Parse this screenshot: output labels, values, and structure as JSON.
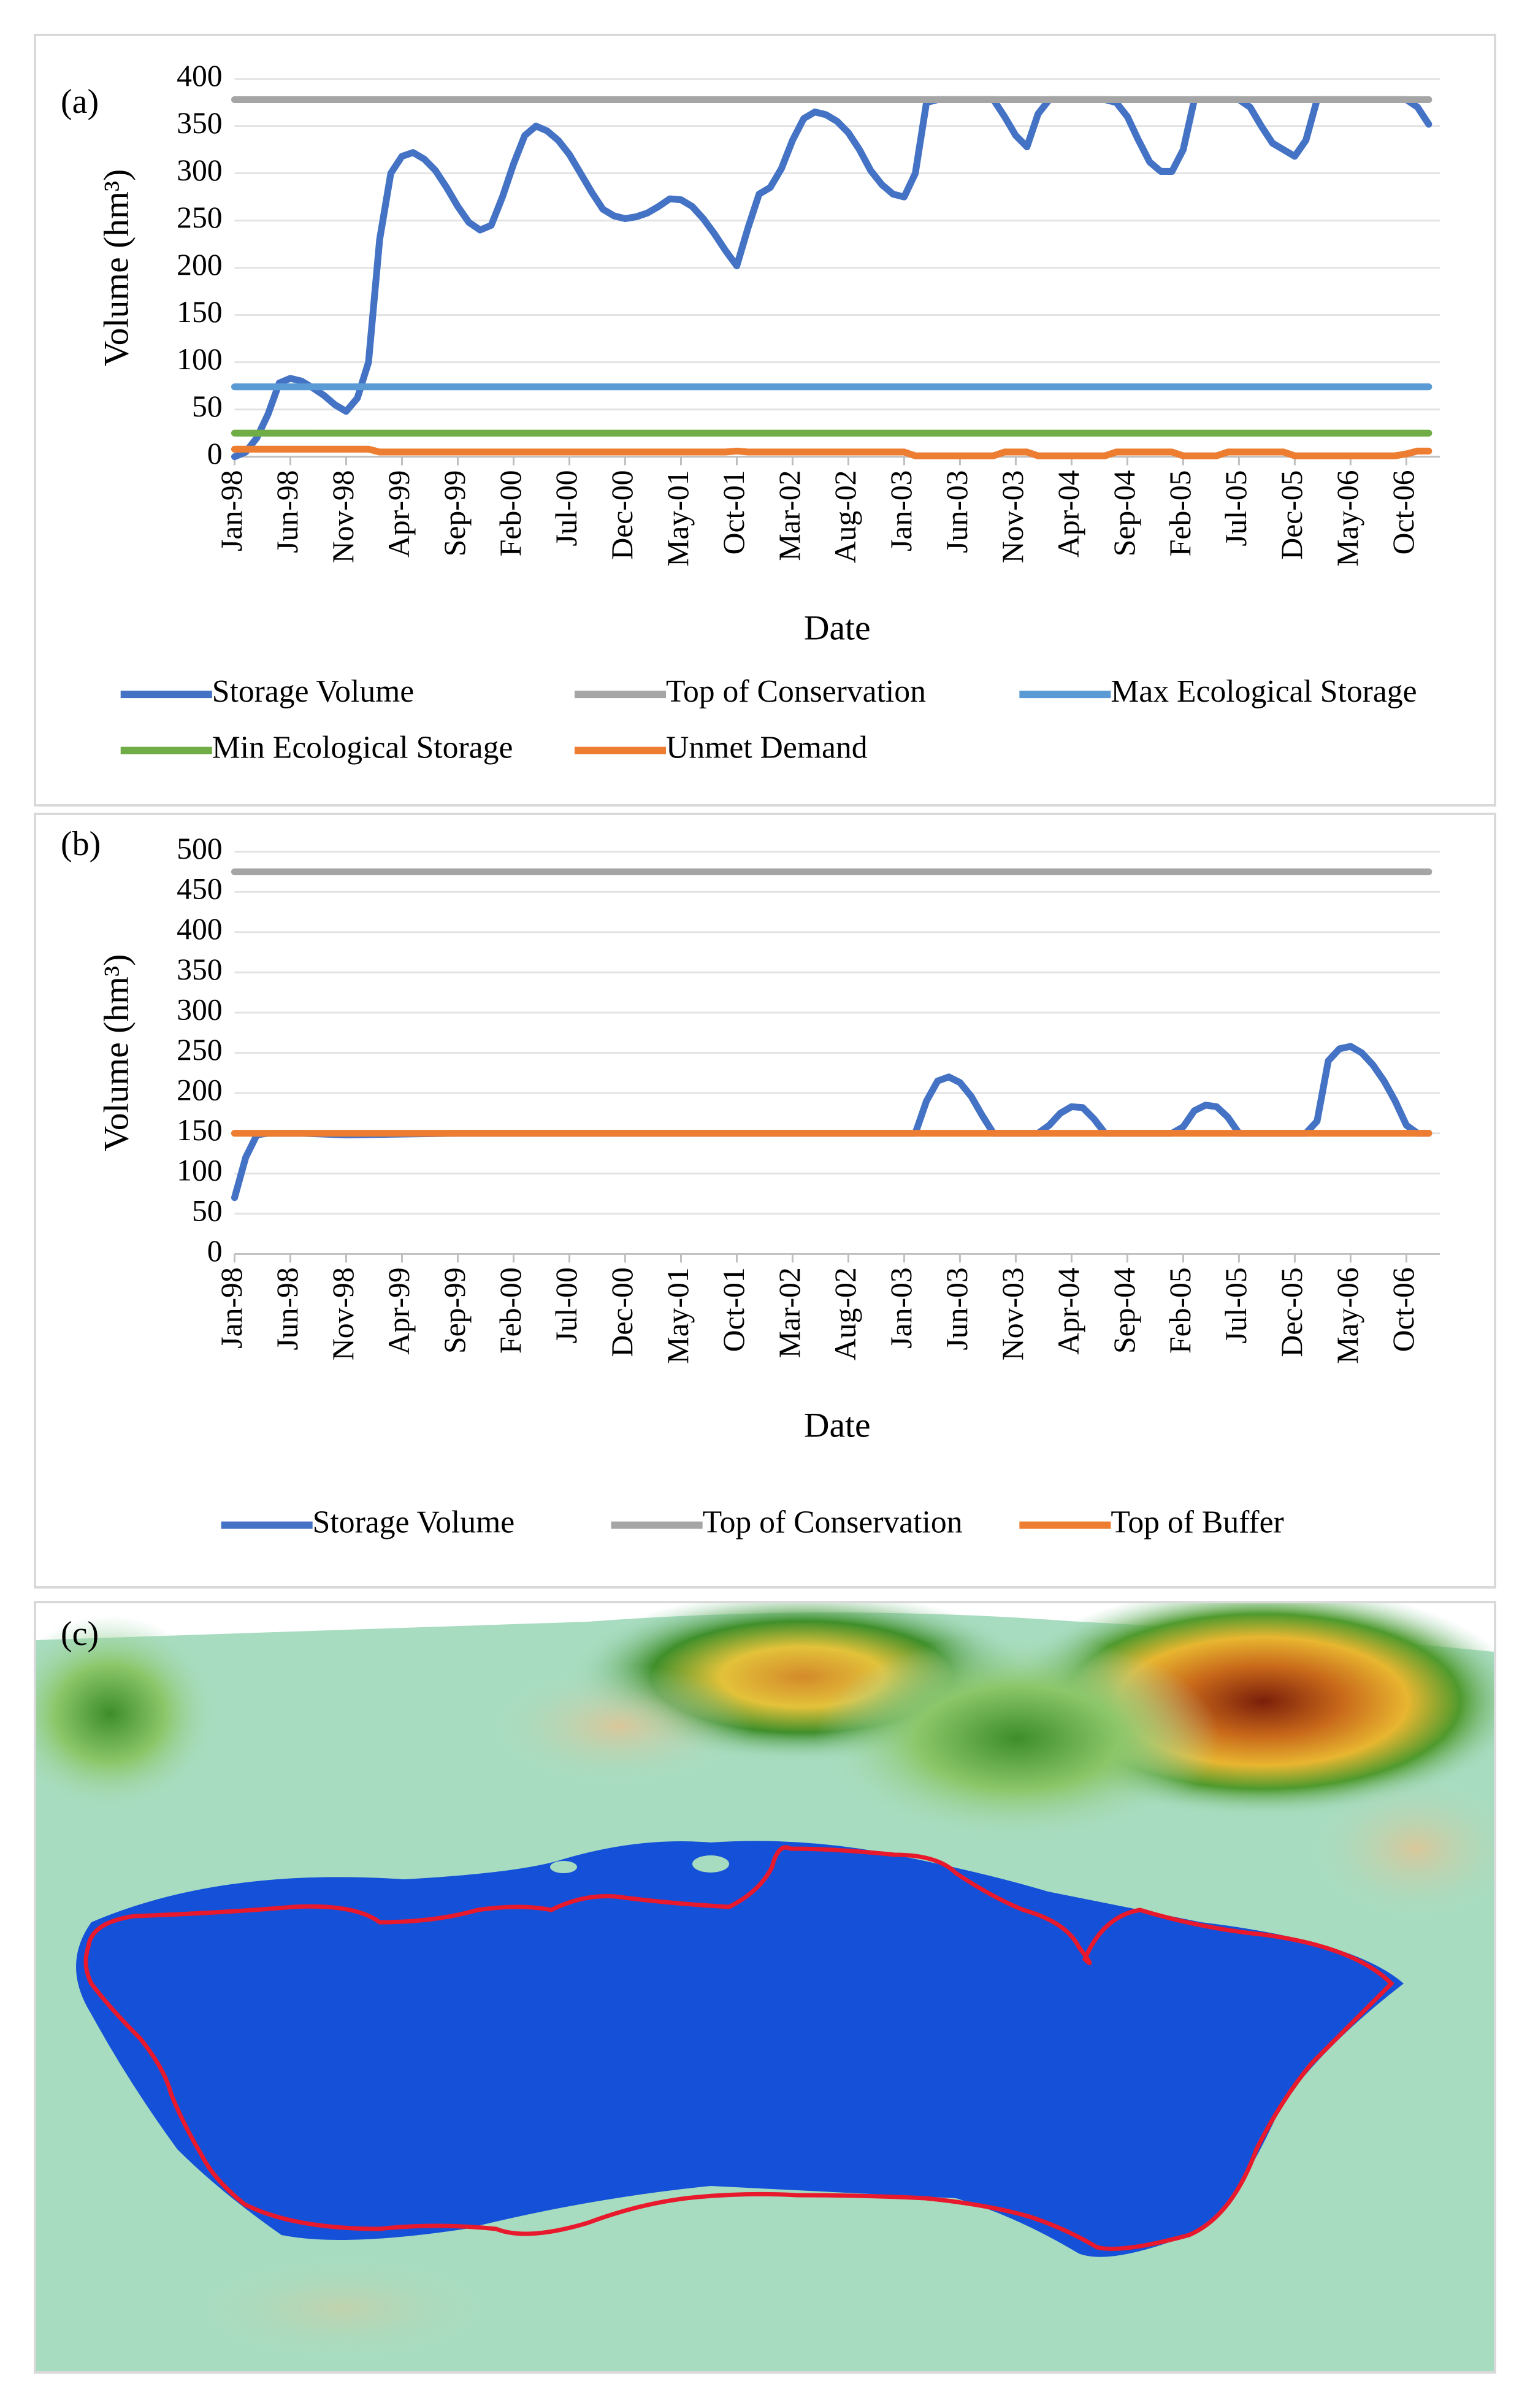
{
  "panel_a": {
    "label": "(a)",
    "chart_data": {
      "type": "line",
      "ylabel": "Volume (hm³)",
      "xlabel": "Date",
      "ylim": [
        0,
        400
      ],
      "y_ticks": [
        0,
        50,
        100,
        150,
        200,
        250,
        300,
        350,
        400
      ],
      "x_tick_labels": [
        "Jan-98",
        "Jun-98",
        "Nov-98",
        "Apr-99",
        "Sep-99",
        "Feb-00",
        "Jul-00",
        "Dec-00",
        "May-01",
        "Oct-01",
        "Mar-02",
        "Aug-02",
        "Jan-03",
        "Jun-03",
        "Nov-03",
        "Apr-04",
        "Sep-04",
        "Feb-05",
        "Jul-05",
        "Dec-05",
        "May-06",
        "Oct-06"
      ],
      "x_months": [
        0,
        5,
        10,
        15,
        20,
        25,
        30,
        35,
        40,
        45,
        50,
        55,
        60,
        65,
        70,
        75,
        80,
        85,
        90,
        95,
        100,
        105
      ],
      "x_range_months": [
        0,
        108
      ],
      "grid": true,
      "legend_position": "bottom",
      "series": [
        {
          "name": "Storage Volume",
          "color": "#4472c4",
          "width": 7,
          "points": [
            [
              0,
              0
            ],
            [
              1,
              5
            ],
            [
              2,
              20
            ],
            [
              3,
              45
            ],
            [
              4,
              78
            ],
            [
              5,
              83
            ],
            [
              6,
              80
            ],
            [
              7,
              73
            ],
            [
              8,
              65
            ],
            [
              9,
              55
            ],
            [
              10,
              48
            ],
            [
              11,
              62
            ],
            [
              12,
              100
            ],
            [
              13,
              230
            ],
            [
              14,
              300
            ],
            [
              15,
              318
            ],
            [
              16,
              322
            ],
            [
              17,
              315
            ],
            [
              18,
              303
            ],
            [
              19,
              285
            ],
            [
              20,
              265
            ],
            [
              21,
              248
            ],
            [
              22,
              240
            ],
            [
              23,
              245
            ],
            [
              24,
              275
            ],
            [
              25,
              310
            ],
            [
              26,
              340
            ],
            [
              27,
              350
            ],
            [
              28,
              345
            ],
            [
              29,
              335
            ],
            [
              30,
              320
            ],
            [
              31,
              300
            ],
            [
              32,
              280
            ],
            [
              33,
              262
            ],
            [
              34,
              255
            ],
            [
              35,
              252
            ],
            [
              36,
              254
            ],
            [
              37,
              258
            ],
            [
              38,
              265
            ],
            [
              39,
              273
            ],
            [
              40,
              272
            ],
            [
              41,
              265
            ],
            [
              42,
              252
            ],
            [
              43,
              236
            ],
            [
              44,
              218
            ],
            [
              45,
              202
            ],
            [
              46,
              242
            ],
            [
              47,
              278
            ],
            [
              48,
              285
            ],
            [
              49,
              305
            ],
            [
              50,
              335
            ],
            [
              51,
              358
            ],
            [
              52,
              365
            ],
            [
              53,
              362
            ],
            [
              54,
              355
            ],
            [
              55,
              343
            ],
            [
              56,
              325
            ],
            [
              57,
              303
            ],
            [
              58,
              288
            ],
            [
              59,
              278
            ],
            [
              60,
              275
            ],
            [
              61,
              300
            ],
            [
              62,
              375
            ],
            [
              63,
              378
            ],
            [
              64,
              378
            ],
            [
              65,
              378
            ],
            [
              66,
              378
            ],
            [
              67,
              378
            ],
            [
              68,
              378
            ],
            [
              69,
              360
            ],
            [
              70,
              340
            ],
            [
              71,
              328
            ],
            [
              72,
              363
            ],
            [
              73,
              378
            ],
            [
              74,
              378
            ],
            [
              75,
              378
            ],
            [
              76,
              378
            ],
            [
              77,
              378
            ],
            [
              78,
              378
            ],
            [
              79,
              375
            ],
            [
              80,
              360
            ],
            [
              81,
              335
            ],
            [
              82,
              312
            ],
            [
              83,
              302
            ],
            [
              84,
              302
            ],
            [
              85,
              325
            ],
            [
              86,
              378
            ],
            [
              87,
              378
            ],
            [
              88,
              378
            ],
            [
              89,
              378
            ],
            [
              90,
              378
            ],
            [
              91,
              370
            ],
            [
              92,
              350
            ],
            [
              93,
              332
            ],
            [
              94,
              325
            ],
            [
              95,
              318
            ],
            [
              96,
              335
            ],
            [
              97,
              378
            ],
            [
              98,
              378
            ],
            [
              99,
              378
            ],
            [
              100,
              378
            ],
            [
              101,
              378
            ],
            [
              102,
              378
            ],
            [
              103,
              378
            ],
            [
              104,
              378
            ],
            [
              105,
              378
            ],
            [
              106,
              370
            ],
            [
              107,
              352
            ]
          ]
        },
        {
          "name": "Top of Conservation",
          "color": "#a5a5a5",
          "width": 7,
          "points": [
            [
              0,
              378
            ],
            [
              107,
              378
            ]
          ]
        },
        {
          "name": "Max Ecological Storage",
          "color": "#5b9bd5",
          "width": 7,
          "points": [
            [
              0,
              74
            ],
            [
              107,
              74
            ]
          ]
        },
        {
          "name": "Min Ecological Storage",
          "color": "#70ad47",
          "width": 7,
          "points": [
            [
              0,
              25
            ],
            [
              107,
              25
            ]
          ]
        },
        {
          "name": "Unmet Demand",
          "color": "#ed7d31",
          "width": 7,
          "points": [
            [
              0,
              8
            ],
            [
              5,
              8
            ],
            [
              10,
              8
            ],
            [
              12,
              8
            ],
            [
              13,
              5
            ],
            [
              15,
              5
            ],
            [
              30,
              5
            ],
            [
              44,
              5
            ],
            [
              45,
              6
            ],
            [
              46,
              5
            ],
            [
              60,
              5
            ],
            [
              61,
              1
            ],
            [
              62,
              1
            ],
            [
              68,
              1
            ],
            [
              69,
              5
            ],
            [
              70,
              5
            ],
            [
              71,
              5
            ],
            [
              72,
              1
            ],
            [
              78,
              1
            ],
            [
              79,
              5
            ],
            [
              84,
              5
            ],
            [
              85,
              1
            ],
            [
              88,
              1
            ],
            [
              89,
              5
            ],
            [
              94,
              5
            ],
            [
              95,
              1
            ],
            [
              104,
              1
            ],
            [
              105,
              3
            ],
            [
              106,
              6
            ],
            [
              107,
              6
            ]
          ]
        }
      ]
    },
    "legend": [
      "Storage Volume",
      "Top of Conservation",
      "Max Ecological Storage",
      "Min Ecological Storage",
      "Unmet Demand"
    ]
  },
  "panel_b": {
    "label": "(b)",
    "chart_data": {
      "type": "line",
      "ylabel": "Volume (hm³)",
      "xlabel": "Date",
      "ylim": [
        0,
        500
      ],
      "y_ticks": [
        0,
        50,
        100,
        150,
        200,
        250,
        300,
        350,
        400,
        450,
        500
      ],
      "x_tick_labels": [
        "Jan-98",
        "Jun-98",
        "Nov-98",
        "Apr-99",
        "Sep-99",
        "Feb-00",
        "Jul-00",
        "Dec-00",
        "May-01",
        "Oct-01",
        "Mar-02",
        "Aug-02",
        "Jan-03",
        "Jun-03",
        "Nov-03",
        "Apr-04",
        "Sep-04",
        "Feb-05",
        "Jul-05",
        "Dec-05",
        "May-06",
        "Oct-06"
      ],
      "x_months": [
        0,
        5,
        10,
        15,
        20,
        25,
        30,
        35,
        40,
        45,
        50,
        55,
        60,
        65,
        70,
        75,
        80,
        85,
        90,
        95,
        100,
        105
      ],
      "x_range_months": [
        0,
        108
      ],
      "grid": true,
      "legend_position": "bottom",
      "series": [
        {
          "name": "Storage Volume",
          "color": "#4472c4",
          "width": 7,
          "points": [
            [
              0,
              70
            ],
            [
              1,
              120
            ],
            [
              2,
              148
            ],
            [
              3,
              150
            ],
            [
              6,
              150
            ],
            [
              10,
              148
            ],
            [
              20,
              150
            ],
            [
              40,
              150
            ],
            [
              60,
              150
            ],
            [
              61,
              150
            ],
            [
              62,
              190
            ],
            [
              63,
              215
            ],
            [
              64,
              220
            ],
            [
              65,
              213
            ],
            [
              66,
              196
            ],
            [
              67,
              172
            ],
            [
              68,
              150
            ],
            [
              72,
              150
            ],
            [
              73,
              160
            ],
            [
              74,
              175
            ],
            [
              75,
              183
            ],
            [
              76,
              182
            ],
            [
              77,
              168
            ],
            [
              78,
              150
            ],
            [
              84,
              150
            ],
            [
              85,
              158
            ],
            [
              86,
              178
            ],
            [
              87,
              185
            ],
            [
              88,
              183
            ],
            [
              89,
              170
            ],
            [
              90,
              150
            ],
            [
              96,
              150
            ],
            [
              97,
              165
            ],
            [
              98,
              240
            ],
            [
              99,
              255
            ],
            [
              100,
              258
            ],
            [
              101,
              250
            ],
            [
              102,
              235
            ],
            [
              103,
              215
            ],
            [
              104,
              190
            ],
            [
              105,
              160
            ],
            [
              106,
              150
            ],
            [
              107,
              150
            ]
          ]
        },
        {
          "name": "Top of Conservation",
          "color": "#a5a5a5",
          "width": 7,
          "points": [
            [
              0,
              475
            ],
            [
              107,
              475
            ]
          ]
        },
        {
          "name": "Top of Buffer",
          "color": "#ed7d31",
          "width": 7,
          "points": [
            [
              0,
              150
            ],
            [
              107,
              150
            ]
          ]
        }
      ]
    },
    "legend": [
      "Storage Volume",
      "Top of Conservation",
      "Top of Buffer"
    ]
  },
  "panel_c": {
    "label": "(c)",
    "colors": {
      "water": "#1451d8",
      "outline": "#e8192c",
      "lowland": "#a8dcc0",
      "hills": "#d7b98a",
      "peaks": "#8a2a10"
    }
  }
}
